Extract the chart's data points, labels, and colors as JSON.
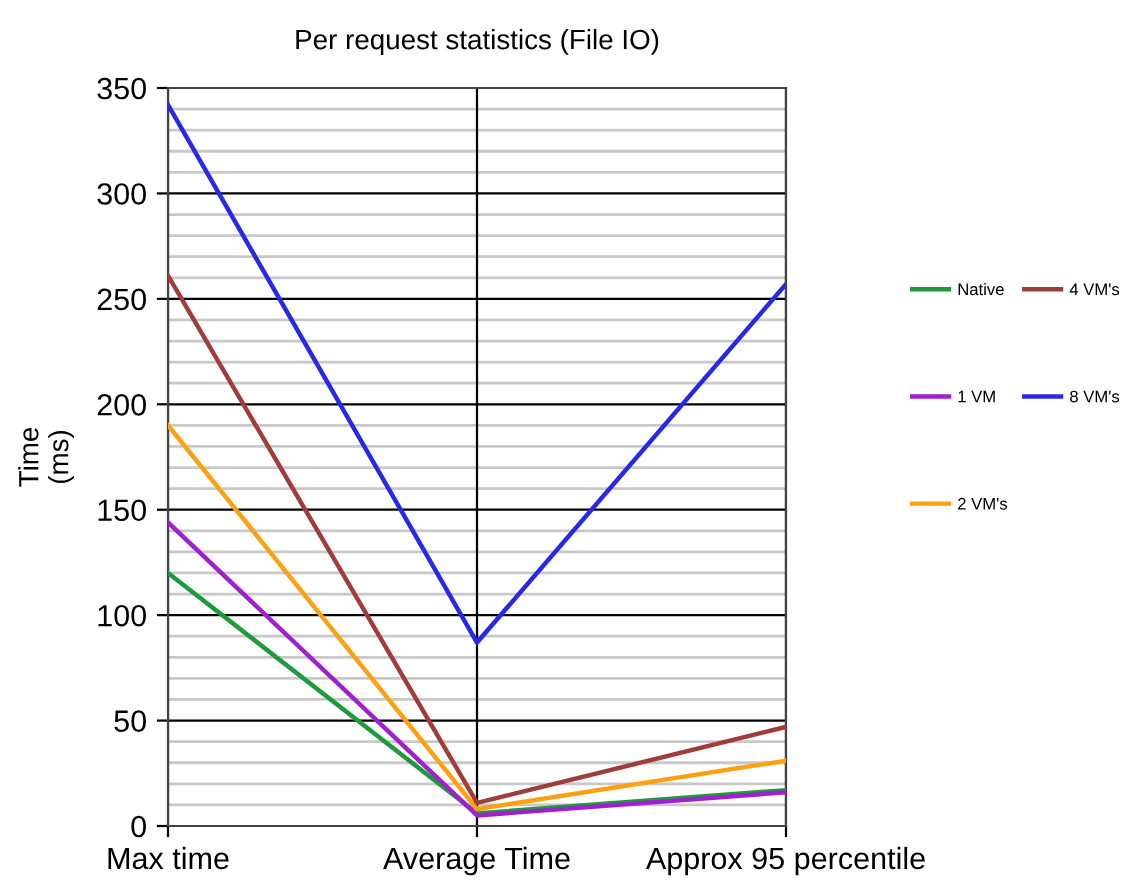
{
  "chart_data": {
    "type": "line",
    "title": "Per request statistics (File IO)",
    "ylabel": "Time\n(ms)",
    "categories": [
      "Max time",
      "Average Time",
      "Approx 95 percentile"
    ],
    "series": [
      {
        "name": "Native",
        "color": "#1e9a3c",
        "values": [
          120,
          6,
          17
        ]
      },
      {
        "name": "1 VM",
        "color": "#a020d0",
        "values": [
          144,
          5,
          16
        ]
      },
      {
        "name": "2 VM's",
        "color": "#ffa010",
        "values": [
          190,
          8,
          31
        ]
      },
      {
        "name": "4 VM's",
        "color": "#a03c3c",
        "values": [
          261,
          11,
          47
        ]
      },
      {
        "name": "8 VM's",
        "color": "#2828e8",
        "values": [
          342,
          87,
          257
        ]
      }
    ],
    "ylim": [
      0,
      350
    ],
    "yticks": [
      0,
      {
        "value": 10,
        "label": null
      },
      {
        "value": 20,
        "label": null
      },
      {
        "value": 30,
        "label": null
      },
      {
        "value": 40,
        "label": null
      },
      50,
      {
        "value": 60,
        "label": null
      },
      {
        "value": 70,
        "label": null
      },
      {
        "value": 80,
        "label": null
      },
      {
        "value": 90,
        "label": null
      },
      100,
      {
        "value": 110,
        "label": null
      },
      {
        "value": 120,
        "label": null
      },
      {
        "value": 130,
        "label": null
      },
      {
        "value": 140,
        "label": null
      },
      150,
      {
        "value": 160,
        "label": null
      },
      {
        "value": 170,
        "label": null
      },
      {
        "value": 180,
        "label": null
      },
      {
        "value": 190,
        "label": null
      },
      200,
      {
        "value": 210,
        "label": null
      },
      {
        "value": 220,
        "label": null
      },
      {
        "value": 230,
        "label": null
      },
      {
        "value": 240,
        "label": null
      },
      250,
      {
        "value": 260,
        "label": null
      },
      {
        "value": 270,
        "label": null
      },
      {
        "value": 280,
        "label": null
      },
      {
        "value": 290,
        "label": null
      },
      300,
      {
        "value": 310,
        "label": null
      },
      {
        "value": 320,
        "label": null
      },
      {
        "value": 330,
        "label": null
      },
      {
        "value": 340,
        "label": null
      },
      350
    ],
    "grid": true,
    "legend": "right",
    "marker": "none",
    "line_style": "solid"
  }
}
